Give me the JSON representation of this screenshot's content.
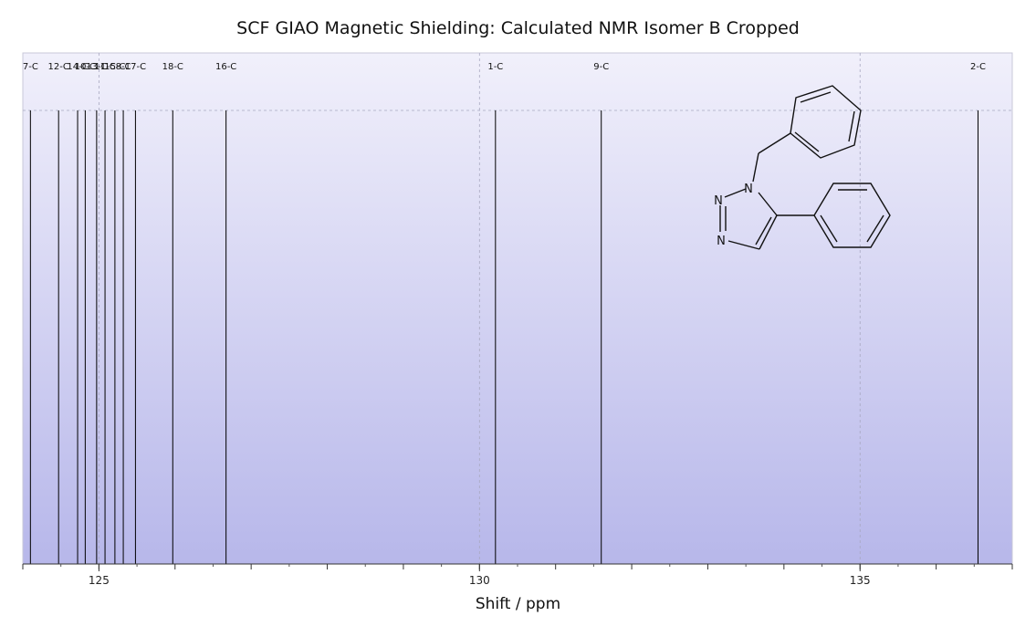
{
  "chart_data": {
    "type": "line",
    "title": "SCF GIAO Magnetic Shielding: Calculated NMR Isomer B Cropped",
    "xlabel": "Shift / ppm",
    "ylabel": "",
    "xlim": [
      124.0,
      137.0
    ],
    "x_reversed": false,
    "major_ticks": [
      125,
      130,
      135
    ],
    "minor_tick_step": 1,
    "grid": true,
    "background_gradient": [
      "#f1f0fb",
      "#b7b7ea"
    ],
    "peak_color": "#000000",
    "peaks": [
      {
        "label": "7-C",
        "shift": 124.1
      },
      {
        "label": "12-C",
        "shift": 124.47
      },
      {
        "label": "14-C",
        "shift": 124.72
      },
      {
        "label": "10-C",
        "shift": 124.82
      },
      {
        "label": "13-C",
        "shift": 124.97
      },
      {
        "label": "11-C",
        "shift": 125.08
      },
      {
        "label": "15-C",
        "shift": 125.21
      },
      {
        "label": "8-C",
        "shift": 125.32
      },
      {
        "label": "17-C",
        "shift": 125.48
      },
      {
        "label": "18-C",
        "shift": 125.97
      },
      {
        "label": "16-C",
        "shift": 126.67
      },
      {
        "label": "1-C",
        "shift": 130.21
      },
      {
        "label": "9-C",
        "shift": 131.6
      },
      {
        "label": "2-C",
        "shift": 136.55
      }
    ]
  },
  "molecule": {
    "atom_labels": [
      "N",
      "N",
      "N"
    ]
  }
}
